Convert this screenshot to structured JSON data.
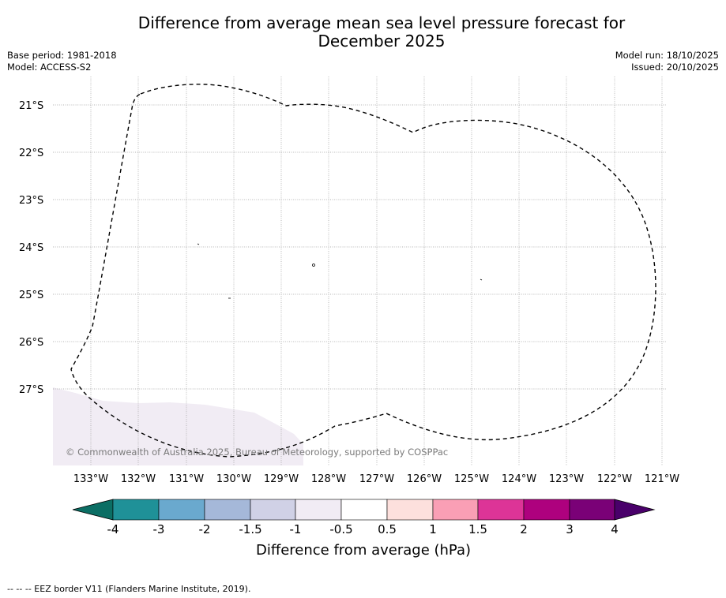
{
  "title_line1": "Difference from average mean sea level pressure forecast for",
  "title_line2": "December 2025",
  "base_period": "Base period: 1981-2018",
  "model": "Model: ACCESS-S2",
  "model_run": "Model run: 18/10/2025",
  "issued": "Issued: 20/10/2025",
  "copyright": "© Commonwealth of Australia 2025, Bureau of Meteorology, supported by COSPPac",
  "legend_note": "-- -- -- EEZ border V11 (Flanders Marine Institute, 2019).",
  "map": {
    "lat_labels": [
      "21°S",
      "22°S",
      "23°S",
      "24°S",
      "25°S",
      "26°S",
      "27°S"
    ],
    "lon_labels": [
      "133°W",
      "132°W",
      "131°W",
      "130°W",
      "129°W",
      "128°W",
      "127°W",
      "126°W",
      "125°W",
      "124°W",
      "123°W",
      "122°W",
      "121°W"
    ]
  },
  "colorbar": {
    "label": "Difference from average (hPa)",
    "ticks": [
      "-4",
      "-3",
      "-2",
      "-1.5",
      "-1",
      "-0.5",
      "0.5",
      "1",
      "1.5",
      "2",
      "3",
      "4"
    ],
    "colors": {
      "below_min": "#0b6e64",
      "bins": [
        "#1f9198",
        "#6aa9ce",
        "#a5b8d9",
        "#d0d1e6",
        "#f1ecf4",
        "#ffffff",
        "#fde0dd",
        "#fa9fb5",
        "#dd3497",
        "#ae017e",
        "#7a0177"
      ],
      "above_max": "#49006a"
    }
  },
  "anomaly_field_color": "#f1ecf4"
}
